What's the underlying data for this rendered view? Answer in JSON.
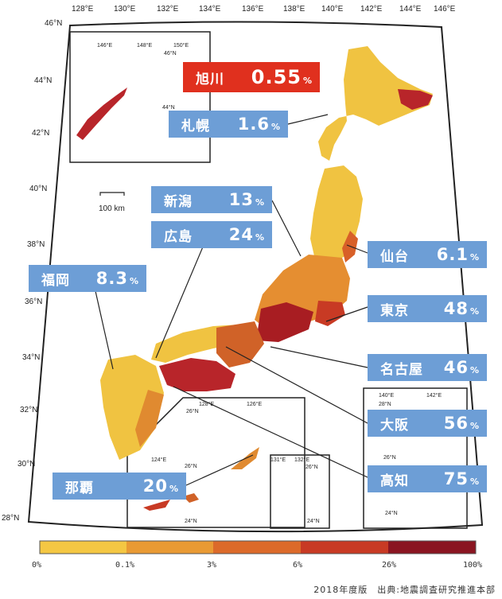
{
  "map": {
    "lon_labels": [
      "128°E",
      "130°E",
      "132°E",
      "134°E",
      "136°E",
      "138°E",
      "140°E",
      "142°E",
      "144°E",
      "146°E"
    ],
    "lat_labels": [
      "46°N",
      "44°N",
      "42°N",
      "40°N",
      "38°N",
      "36°N",
      "34°N",
      "32°N",
      "30°N",
      "28°N"
    ],
    "scale_bar": "100 km",
    "inset_nw_labels": [
      "146°E",
      "148°E",
      "150°E",
      "46°N",
      "44°N"
    ],
    "inset_sw_labels": [
      "128°E",
      "126°E",
      "26°N",
      "124°E",
      "26°N",
      "24°N"
    ],
    "inset_mid_labels": [
      "131°E",
      "132°E",
      "26°N",
      "24°N"
    ],
    "inset_se_labels": [
      "140°E",
      "142°E",
      "28°N",
      "26°N",
      "24°N"
    ]
  },
  "cities": [
    {
      "name": "旭川",
      "value": "0.55",
      "unit": "%",
      "highlight": true
    },
    {
      "name": "札幌",
      "value": "1.6",
      "unit": "%"
    },
    {
      "name": "新潟",
      "value": "13",
      "unit": "%"
    },
    {
      "name": "広島",
      "value": "24",
      "unit": "%"
    },
    {
      "name": "仙台",
      "value": "6.1",
      "unit": "%"
    },
    {
      "name": "福岡",
      "value": "8.3",
      "unit": "%"
    },
    {
      "name": "東京",
      "value": "48",
      "unit": "%"
    },
    {
      "name": "名古屋",
      "value": "46",
      "unit": "%"
    },
    {
      "name": "大阪",
      "value": "56",
      "unit": "%"
    },
    {
      "name": "高知",
      "value": "75",
      "unit": "%"
    },
    {
      "name": "那覇",
      "value": "20",
      "unit": "%"
    }
  ],
  "legend": {
    "ticks": [
      "0%",
      "0.1%",
      "3%",
      "6%",
      "26%",
      "100%"
    ],
    "colors": [
      "#f2e65a",
      "#f4c743",
      "#e99a34",
      "#dc6a2a",
      "#c83a24",
      "#8a1521"
    ]
  },
  "source": "2018年度版　出典:地震調査研究推進本部"
}
